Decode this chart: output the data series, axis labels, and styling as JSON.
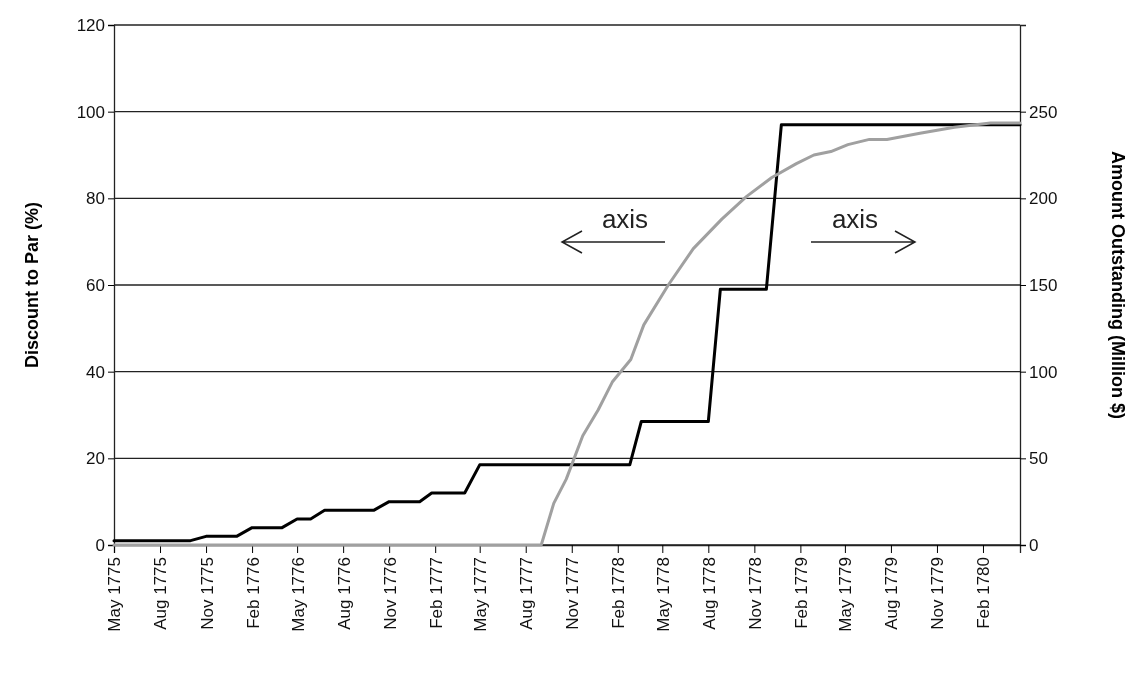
{
  "chart_data": {
    "type": "line",
    "ylabel": "Discount to Par (%)",
    "y2label": "Amount Outstanding (Million $)",
    "xlim": [
      "1775-05-01",
      "1780-04-15"
    ],
    "xticks": [
      {
        "value": "1775-05-01",
        "label": "May 1775"
      },
      {
        "value": "1775-08-01",
        "label": "Aug 1775"
      },
      {
        "value": "1775-11-01",
        "label": "Nov 1775"
      },
      {
        "value": "1776-02-01",
        "label": "Feb 1776"
      },
      {
        "value": "1776-05-01",
        "label": "May 1776"
      },
      {
        "value": "1776-08-01",
        "label": "Aug 1776"
      },
      {
        "value": "1776-11-01",
        "label": "Nov 1776"
      },
      {
        "value": "1777-02-01",
        "label": "Feb 1777"
      },
      {
        "value": "1777-05-01",
        "label": "May 1777"
      },
      {
        "value": "1777-08-01",
        "label": "Aug 1777"
      },
      {
        "value": "1777-11-01",
        "label": "Nov 1777"
      },
      {
        "value": "1778-02-01",
        "label": "Feb 1778"
      },
      {
        "value": "1778-05-01",
        "label": "May 1778"
      },
      {
        "value": "1778-08-01",
        "label": "Aug 1778"
      },
      {
        "value": "1778-11-01",
        "label": "Nov 1778"
      },
      {
        "value": "1779-02-01",
        "label": "Feb 1779"
      },
      {
        "value": "1779-05-01",
        "label": "May 1779"
      },
      {
        "value": "1779-08-01",
        "label": "Aug 1779"
      },
      {
        "value": "1779-11-01",
        "label": "Nov 1779"
      },
      {
        "value": "1780-02-01",
        "label": "Feb 1780"
      }
    ],
    "ylim": [
      0,
      120
    ],
    "yticks": [
      0,
      20,
      40,
      60,
      80,
      100,
      120
    ],
    "y2lim": [
      0,
      300
    ],
    "y2ticks": [
      0,
      50,
      100,
      150,
      200,
      250
    ],
    "grid": "y",
    "marker": "none",
    "line_style": "solid",
    "series": [
      {
        "color": "#000000",
        "x": [
          "1775-05-01",
          "1775-10-01",
          "1775-11-01",
          "1776-01-01",
          "1776-02-01",
          "1776-04-01",
          "1776-05-01",
          "1776-05-28",
          "1776-06-25",
          "1776-10-01",
          "1776-11-01",
          "1777-01-01",
          "1777-01-25",
          "1777-04-01",
          "1777-05-01",
          "1778-02-25",
          "1778-03-20",
          "1778-08-01",
          "1778-08-25",
          "1778-11-25",
          "1778-12-25",
          "1780-04-15"
        ],
        "values": [
          1,
          1,
          2,
          2,
          4,
          4,
          6,
          6,
          8,
          8,
          10,
          10,
          12,
          12,
          18.5,
          18.5,
          28.5,
          28.5,
          59,
          59,
          97,
          97
        ]
      },
      {
        "color": "#a0a0a0",
        "axis": "y2",
        "x": [
          "1775-05-01",
          "1777-09-01",
          "1777-09-26",
          "1777-10-21",
          "1777-11-23",
          "1777-12-24",
          "1778-01-21",
          "1778-02-27",
          "1778-03-25",
          "1778-05-13",
          "1778-07-02",
          "1778-08-28",
          "1778-10-16",
          "1778-12-06",
          "1779-01-24",
          "1779-02-28",
          "1779-04-03",
          "1779-05-07",
          "1779-06-19",
          "1779-07-24",
          "1779-09-28",
          "1779-12-06",
          "1780-02-16",
          "1780-04-15"
        ],
        "values": [
          0,
          0,
          24,
          38,
          63,
          78,
          94,
          107,
          127,
          150,
          171,
          188,
          201,
          212,
          220,
          225,
          227,
          231,
          234,
          234,
          237.5,
          241,
          243.5,
          243.5
        ]
      }
    ],
    "annotations": [
      "axis",
      "axis"
    ]
  }
}
